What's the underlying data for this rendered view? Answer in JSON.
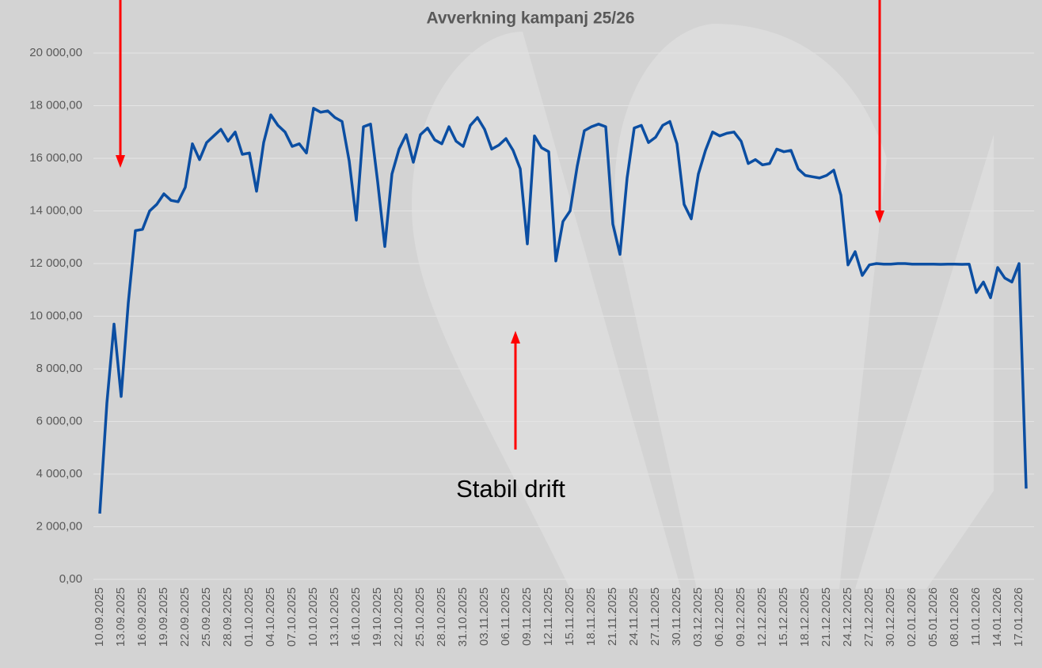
{
  "chart_data": {
    "type": "line",
    "title": "Avverkning kampanj 25/26",
    "annotations": [
      "Stabil drift"
    ],
    "categories": [
      "10.09.2025",
      null,
      null,
      "13.09.2025",
      null,
      null,
      "16.09.2025",
      null,
      null,
      "19.09.2025",
      null,
      null,
      "22.09.2025",
      null,
      null,
      "25.09.2025",
      null,
      null,
      "28.09.2025",
      null,
      null,
      "01.10.2025",
      null,
      null,
      "04.10.2025",
      null,
      null,
      "07.10.2025",
      null,
      null,
      "10.10.2025",
      null,
      null,
      "13.10.2025",
      null,
      null,
      "16.10.2025",
      null,
      null,
      "19.10.2025",
      null,
      null,
      "22.10.2025",
      null,
      null,
      "25.10.2025",
      null,
      null,
      "28.10.2025",
      null,
      null,
      "31.10.2025",
      null,
      null,
      "03.11.2025",
      null,
      null,
      "06.11.2025",
      null,
      null,
      "09.11.2025",
      null,
      null,
      "12.11.2025",
      null,
      null,
      "15.11.2025",
      null,
      null,
      "18.11.2025",
      null,
      null,
      "21.11.2025",
      null,
      null,
      "24.11.2025",
      null,
      null,
      "27.11.2025",
      null,
      null,
      "30.11.2025",
      null,
      null,
      "03.12.2025",
      null,
      null,
      "06.12.2025",
      null,
      null,
      "09.12.2025",
      null,
      null,
      "12.12.2025",
      null,
      null,
      "15.12.2025",
      null,
      null,
      "18.12.2025",
      null,
      null,
      "21.12.2025",
      null,
      null,
      "24.12.2025",
      null,
      null,
      "27.12.2025",
      null,
      null,
      "30.12.2025",
      null,
      null,
      "02.01.2026",
      null,
      null,
      "05.01.2026",
      null,
      null,
      "08.01.2026",
      null,
      null,
      "11.01.2026",
      null,
      null,
      "14.01.2026",
      null,
      null,
      "17.01.2026",
      null
    ],
    "values": [
      2500,
      6700,
      9700,
      6950,
      10500,
      13250,
      13300,
      14000,
      14250,
      14650,
      14400,
      14350,
      14900,
      16550,
      15950,
      16600,
      16850,
      17100,
      16650,
      17000,
      16150,
      16200,
      14750,
      16600,
      17650,
      17250,
      17000,
      16450,
      16550,
      16200,
      17900,
      17750,
      17800,
      17550,
      17400,
      15900,
      13650,
      17200,
      17300,
      15100,
      12650,
      15400,
      16350,
      16900,
      15850,
      16900,
      17150,
      16700,
      16550,
      17200,
      16650,
      16450,
      17250,
      17550,
      17100,
      16350,
      16500,
      16750,
      16300,
      15600,
      12750,
      16850,
      16400,
      16250,
      12100,
      13600,
      14000,
      15700,
      17050,
      17200,
      17300,
      17200,
      13500,
      12350,
      15250,
      17150,
      17250,
      16600,
      16800,
      17250,
      17400,
      16550,
      14250,
      13700,
      15400,
      16300,
      17000,
      16850,
      16950,
      17000,
      16650,
      15800,
      15950,
      15750,
      15800,
      16350,
      16250,
      16300,
      15600,
      15350,
      15300,
      15250,
      15350,
      15550,
      14600,
      11950,
      12450,
      11550,
      11950,
      12000,
      11980,
      11980,
      12000,
      12000,
      11980,
      11980,
      11980,
      11980,
      11970,
      11980,
      11980,
      11970,
      11980,
      10900,
      11300,
      10700,
      11850,
      11450,
      11300,
      12000,
      3450
    ],
    "color": "#0b4ea2",
    "ylim": [
      0,
      20000
    ],
    "yticks": [
      {
        "value": 0,
        "label": "0,00"
      },
      {
        "value": 2000,
        "label": "2 000,00"
      },
      {
        "value": 4000,
        "label": "4 000,00"
      },
      {
        "value": 6000,
        "label": "6 000,00"
      },
      {
        "value": 8000,
        "label": "8 000,00"
      },
      {
        "value": 10000,
        "label": "10 000,00"
      },
      {
        "value": 12000,
        "label": "12 000,00"
      },
      {
        "value": 14000,
        "label": "14 000,00"
      },
      {
        "value": 16000,
        "label": "16 000,00"
      },
      {
        "value": 18000,
        "label": "18 000,00"
      },
      {
        "value": 20000,
        "label": "20 000,00"
      }
    ],
    "grid": true
  }
}
